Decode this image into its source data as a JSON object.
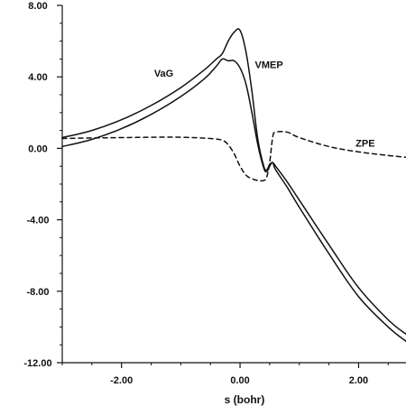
{
  "chart_data": {
    "type": "line",
    "title": "",
    "xlabel": "s (bohr)",
    "ylabel": "",
    "xlim": [
      -3.0,
      2.8
    ],
    "ylim": [
      -12.0,
      8.0
    ],
    "xticks": [
      -2.0,
      0.0,
      2.0
    ],
    "xtick_labels": [
      "-2.00",
      "0.00",
      "2.00"
    ],
    "yticks": [
      8.0,
      4.0,
      0.0,
      -4.0,
      -8.0,
      -12.0
    ],
    "ytick_labels": [
      "8.00",
      "4.00",
      "0.00",
      "-4.00",
      "-8.00",
      "-12.00"
    ],
    "grid": false,
    "legend": "none",
    "series": [
      {
        "name": "VaG",
        "style": "solid",
        "color": "#111111",
        "x": [
          -3.0,
          -2.5,
          -2.0,
          -1.5,
          -1.0,
          -0.6,
          -0.4,
          -0.3,
          -0.2,
          -0.1,
          0.0,
          0.1,
          0.2,
          0.3,
          0.4,
          0.45,
          0.5,
          0.55,
          0.6,
          0.8,
          1.0,
          1.5,
          2.0,
          2.5,
          2.8
        ],
        "y": [
          0.6,
          1.0,
          1.6,
          2.4,
          3.4,
          4.4,
          5.0,
          5.3,
          6.0,
          6.5,
          6.6,
          5.4,
          3.2,
          0.5,
          -1.0,
          -1.2,
          -0.9,
          -0.8,
          -1.0,
          -1.9,
          -2.9,
          -5.4,
          -7.8,
          -9.6,
          -10.4
        ]
      },
      {
        "name": "VMEP",
        "style": "solid",
        "color": "#111111",
        "x": [
          -3.0,
          -2.5,
          -2.0,
          -1.5,
          -1.0,
          -0.6,
          -0.4,
          -0.3,
          -0.2,
          -0.1,
          0.0,
          0.1,
          0.2,
          0.3,
          0.4,
          0.45,
          0.5,
          0.55,
          0.6,
          0.8,
          1.0,
          1.5,
          2.0,
          2.5,
          2.8
        ],
        "y": [
          0.1,
          0.5,
          1.1,
          1.9,
          2.9,
          3.9,
          4.6,
          5.0,
          4.9,
          4.9,
          4.5,
          3.6,
          2.0,
          0.2,
          -1.1,
          -1.3,
          -1.0,
          -0.8,
          -1.2,
          -2.2,
          -3.3,
          -5.9,
          -8.3,
          -10.0,
          -10.8
        ]
      },
      {
        "name": "ZPE",
        "style": "dashed",
        "color": "#111111",
        "x": [
          -3.0,
          -2.5,
          -2.0,
          -1.5,
          -1.0,
          -0.5,
          -0.3,
          -0.2,
          -0.1,
          0.0,
          0.1,
          0.2,
          0.3,
          0.4,
          0.45,
          0.5,
          0.55,
          0.6,
          0.8,
          1.0,
          1.5,
          2.0,
          2.5,
          2.8
        ],
        "y": [
          0.55,
          0.58,
          0.6,
          0.62,
          0.62,
          0.55,
          0.45,
          0.2,
          -0.3,
          -1.0,
          -1.5,
          -1.7,
          -1.8,
          -1.8,
          -1.6,
          -0.8,
          0.6,
          0.9,
          0.9,
          0.6,
          0.1,
          -0.2,
          -0.4,
          -0.5
        ]
      }
    ],
    "annotations": [
      {
        "text": "VaG",
        "x": -1.45,
        "y": 4.0
      },
      {
        "text": "VMEP",
        "x": 0.25,
        "y": 4.5
      },
      {
        "text": "ZPE",
        "x": 1.95,
        "y": 0.1
      }
    ]
  }
}
